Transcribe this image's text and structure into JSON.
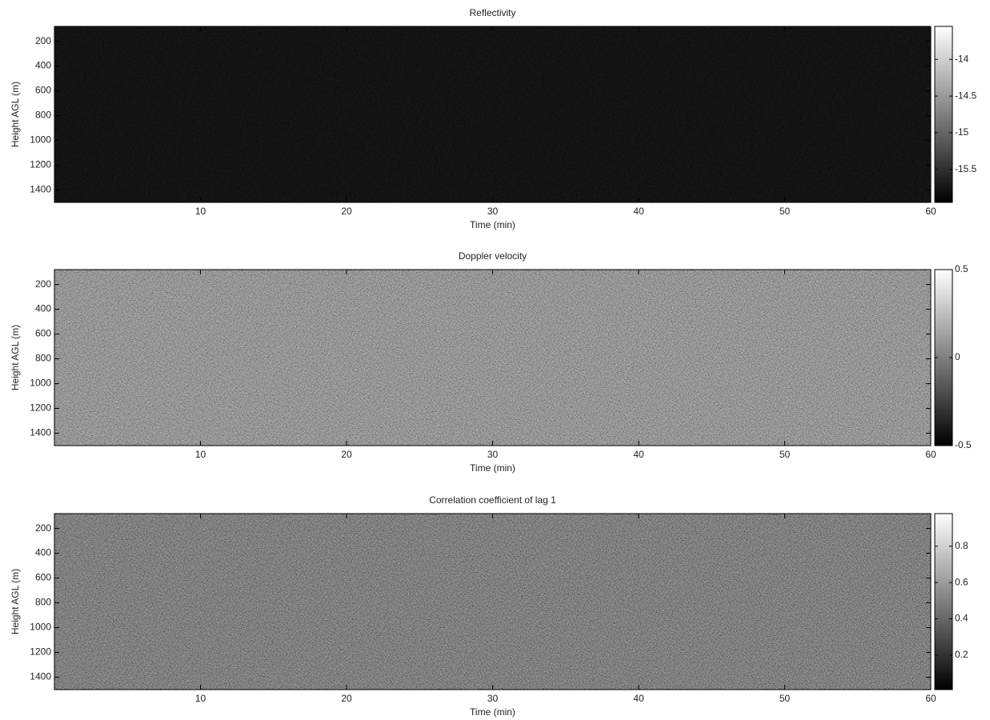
{
  "chart_data": [
    {
      "type": "heatmap",
      "title": "Reflectivity",
      "xlabel": "Time (min)",
      "ylabel": "Height AGL (m)",
      "xlim": [
        0,
        60
      ],
      "xticks": [
        10,
        20,
        30,
        40,
        50,
        60
      ],
      "ylim": [
        1500,
        80
      ],
      "yticks": [
        200,
        400,
        600,
        800,
        1000,
        1200,
        1400
      ],
      "colormap": "gray",
      "clim": [
        -15.95,
        -13.55
      ],
      "cticks": [
        -14,
        -14.5,
        -15,
        -15.5
      ]
    },
    {
      "type": "heatmap",
      "title": "Doppler velocity",
      "xlabel": "Time (min)",
      "ylabel": "Height AGL (m)",
      "xlim": [
        0,
        60
      ],
      "xticks": [
        10,
        20,
        30,
        40,
        50,
        60
      ],
      "ylim": [
        1500,
        80
      ],
      "yticks": [
        200,
        400,
        600,
        800,
        1000,
        1200,
        1400
      ],
      "colormap": "gray",
      "clim": [
        -0.5,
        0.5
      ],
      "cticks": [
        0.5,
        0,
        -0.5
      ]
    },
    {
      "type": "heatmap",
      "title": "Correlation coefficient of lag 1",
      "xlabel": "Time (min)",
      "ylabel": "Height AGL (m)",
      "xlim": [
        0,
        60
      ],
      "xticks": [
        10,
        20,
        30,
        40,
        50,
        60
      ],
      "ylim": [
        1500,
        80
      ],
      "yticks": [
        200,
        400,
        600,
        800,
        1000,
        1200,
        1400
      ],
      "colormap": "gray",
      "clim": [
        0.01,
        0.98
      ],
      "cticks": [
        0.8,
        0.6,
        0.4,
        0.2
      ]
    }
  ]
}
